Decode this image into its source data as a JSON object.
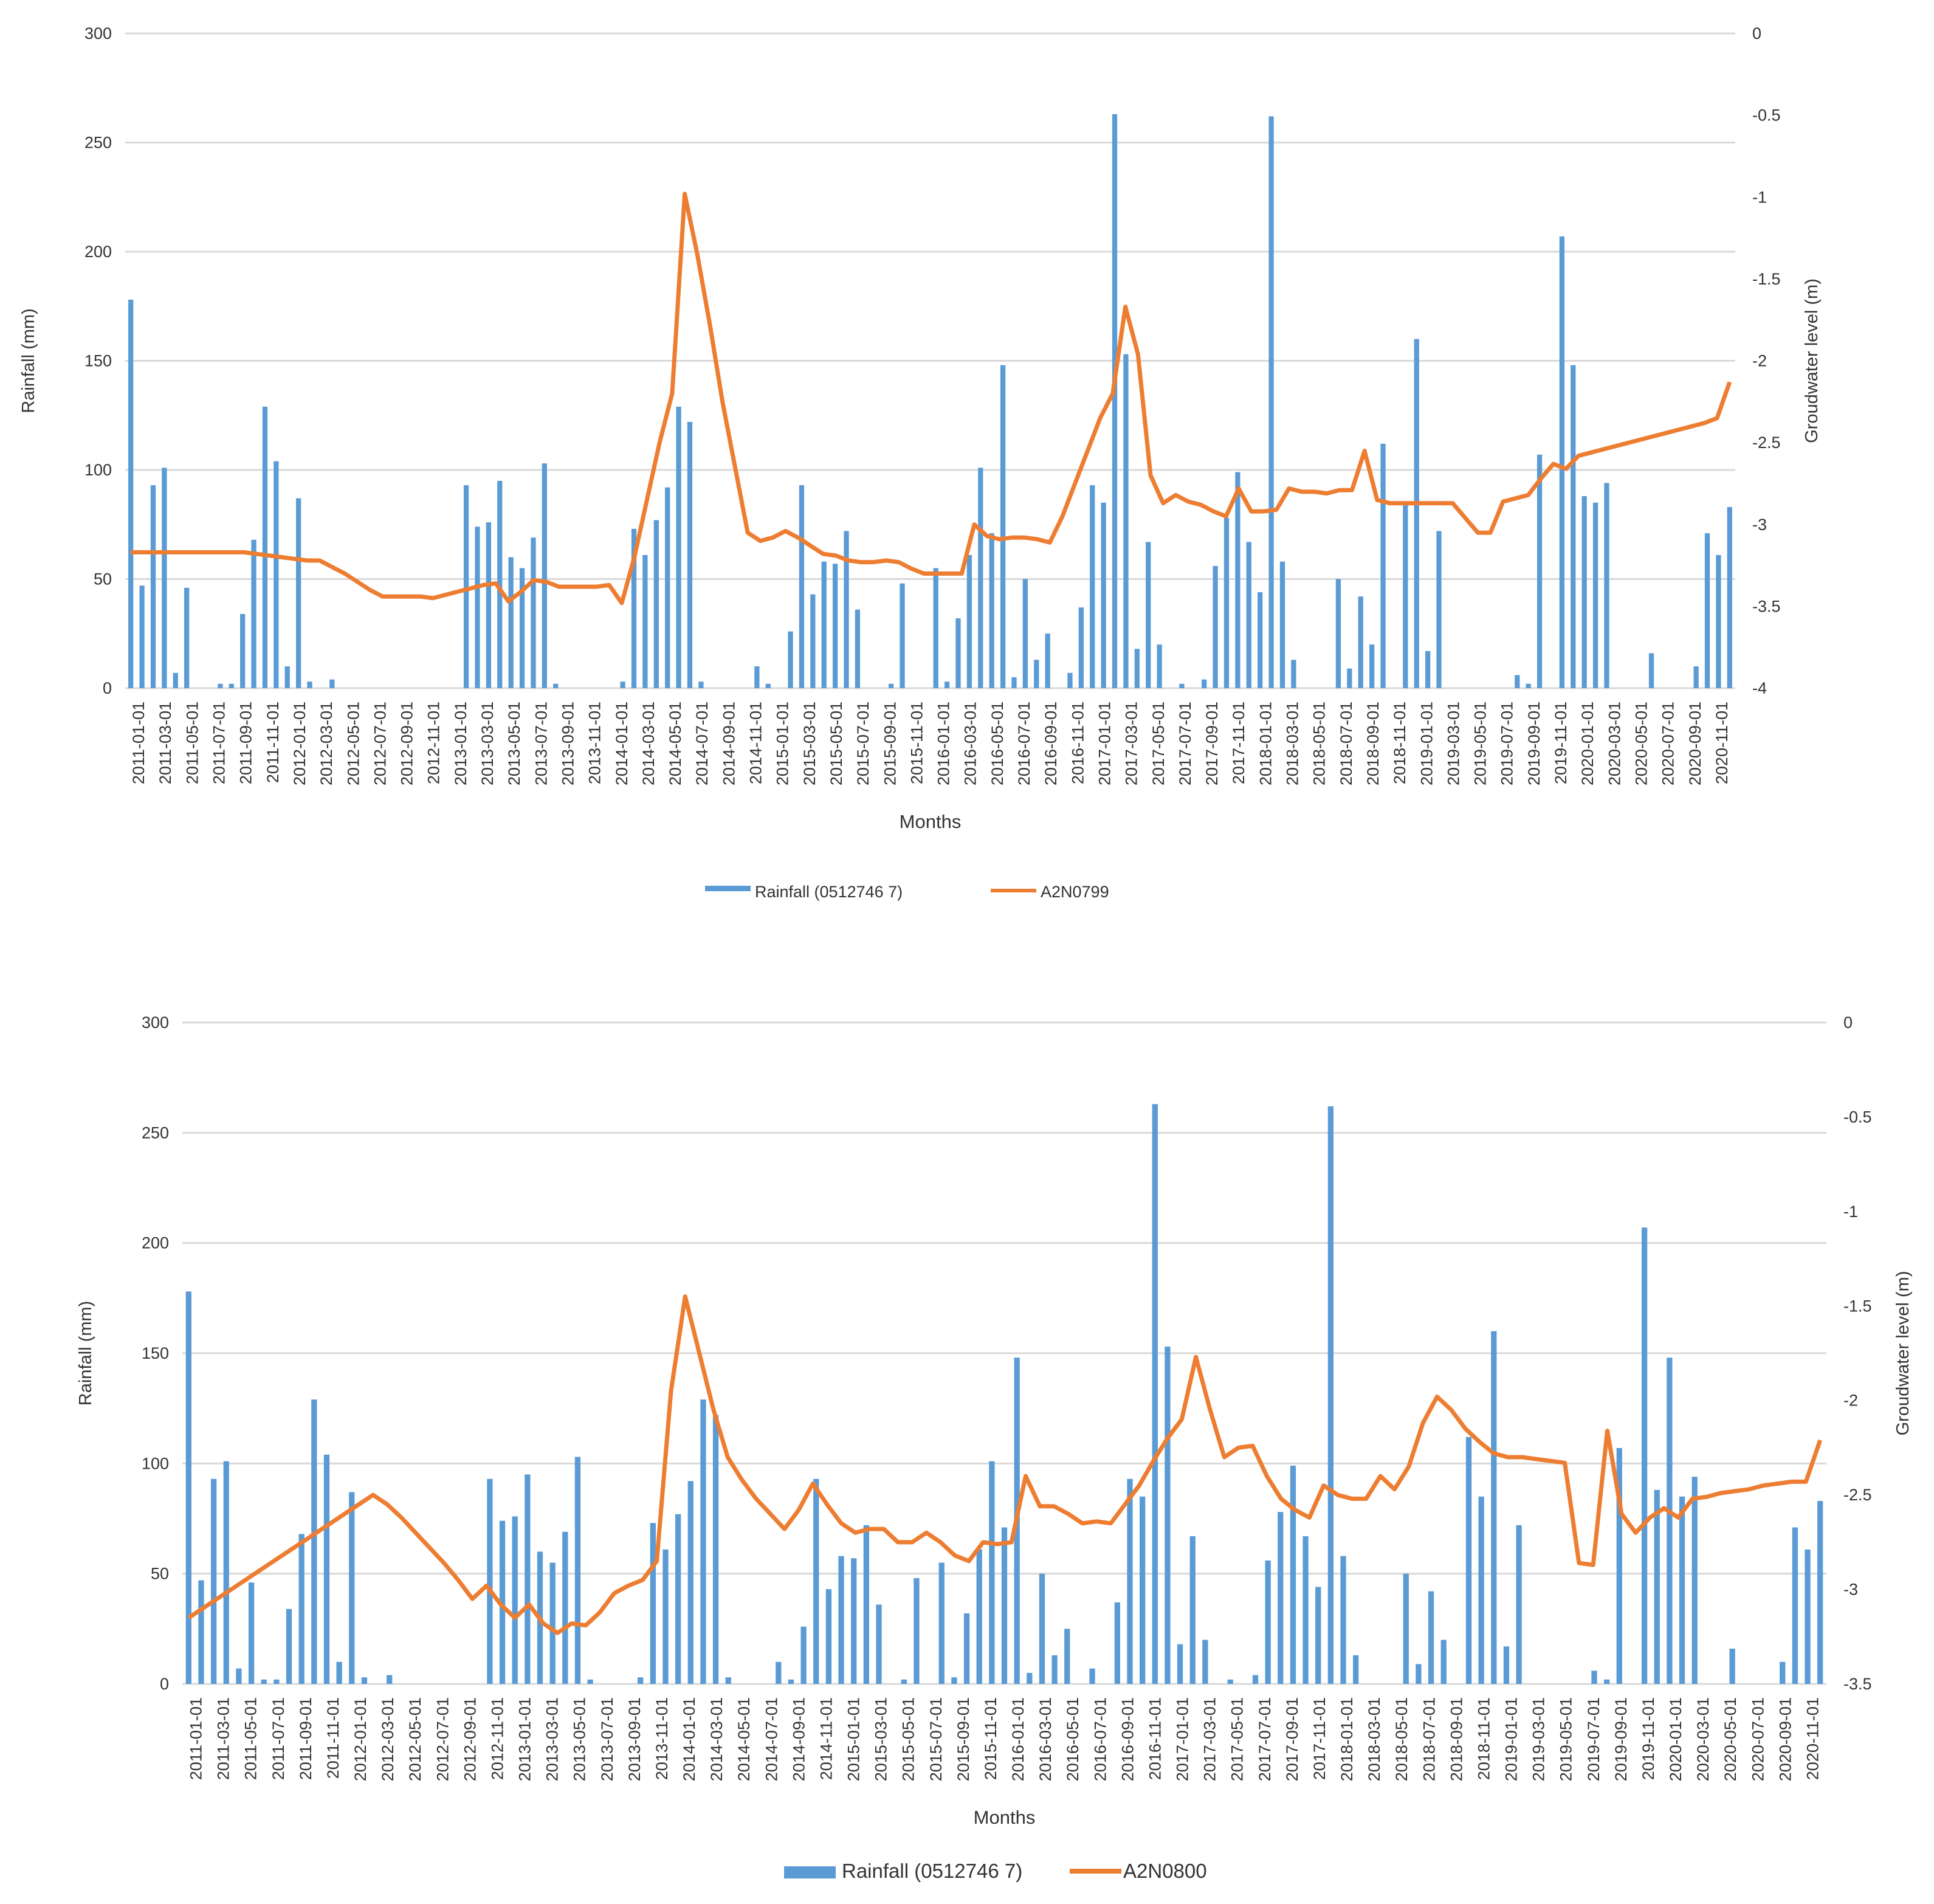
{
  "colors": {
    "rainfall": "#5b9bd5",
    "groundwater": "#ed7d31",
    "grid": "#d9d9d9",
    "text": "#333333"
  },
  "chart_data": [
    {
      "type": "bar+line",
      "xlabel": "Months",
      "ylabel_left": "Rainfall (mm)",
      "ylabel_right": "Groudwater level (m)",
      "ylim_left": [
        0,
        300
      ],
      "ylim_right": [
        -4,
        0
      ],
      "yticks_left": [
        "0",
        "50",
        "100",
        "150",
        "200",
        "250",
        "300"
      ],
      "yticks_right": [
        "-4",
        "-3.5",
        "-3",
        "-2.5",
        "-2",
        "-1.5",
        "-1",
        "-0.5",
        "0"
      ],
      "legend": [
        "Rainfall (0512746 7)",
        "A2N0799"
      ],
      "x_tick_labels": [
        "2011-01-01",
        "2011-03-01",
        "2011-05-01",
        "2011-07-01",
        "2011-09-01",
        "2011-11-01",
        "2012-01-01",
        "2012-03-01",
        "2012-05-01",
        "2012-07-01",
        "2012-09-01",
        "2012-11-01",
        "2013-01-01",
        "2013-03-01",
        "2013-05-01",
        "2013-07-01",
        "2013-09-01",
        "2013-11-01",
        "2014-01-01",
        "2014-03-01",
        "2014-05-01",
        "2014-07-01",
        "2014-09-01",
        "2014-11-01",
        "2015-01-01",
        "2015-03-01",
        "2015-05-01",
        "2015-07-01",
        "2015-09-01",
        "2015-11-01",
        "2016-01-01",
        "2016-03-01",
        "2016-05-01",
        "2016-07-01",
        "2016-09-01",
        "2016-11-01",
        "2017-01-01",
        "2017-03-01",
        "2017-05-01",
        "2017-07-01",
        "2017-09-01",
        "2017-11-01",
        "2018-01-01",
        "2018-03-01",
        "2018-05-01",
        "2018-07-01",
        "2018-09-01",
        "2018-11-01",
        "2019-01-01",
        "2019-03-01",
        "2019-05-01",
        "2019-07-01",
        "2019-09-01",
        "2019-11-01",
        "2020-01-01",
        "2020-03-01",
        "2020-05-01",
        "2020-07-01",
        "2020-09-01",
        "2020-11-01"
      ],
      "rainfall": [
        178,
        47,
        93,
        101,
        7,
        46,
        0,
        0,
        2,
        2,
        34,
        68,
        129,
        104,
        10,
        87,
        3,
        0,
        4,
        0,
        0,
        0,
        0,
        0,
        0,
        0,
        0,
        0,
        0,
        0,
        93,
        74,
        76,
        95,
        60,
        55,
        69,
        103,
        2,
        0,
        0,
        0,
        0,
        0,
        3,
        73,
        61,
        77,
        92,
        129,
        122,
        3,
        0,
        0,
        0,
        0,
        10,
        2,
        0,
        26,
        93,
        43,
        58,
        57,
        72,
        36,
        0,
        0,
        2,
        48,
        0,
        0,
        55,
        3,
        32,
        61,
        101,
        71,
        148,
        5,
        50,
        13,
        25,
        0,
        7,
        37,
        93,
        85,
        263,
        153,
        18,
        67,
        20,
        0,
        2,
        0,
        4,
        56,
        78,
        99,
        67,
        44,
        262,
        58,
        13,
        0,
        0,
        0,
        50,
        9,
        42,
        20,
        112,
        0,
        85,
        160,
        17,
        72,
        0,
        0,
        0,
        0,
        0,
        0,
        6,
        2,
        107,
        0,
        207,
        148,
        88,
        85,
        94,
        0,
        0,
        0,
        16,
        0,
        0,
        0,
        10,
        71,
        61,
        83
      ],
      "groundwater": [
        -3.17,
        -3.17,
        -3.17,
        -3.17,
        -3.17,
        -3.17,
        -3.17,
        -3.17,
        -3.17,
        -3.17,
        -3.18,
        -3.19,
        -3.2,
        -3.21,
        -3.22,
        -3.22,
        -3.26,
        -3.3,
        -3.35,
        -3.4,
        -3.44,
        -3.44,
        -3.44,
        -3.44,
        -3.45,
        -3.43,
        -3.41,
        -3.39,
        -3.37,
        -3.36,
        -3.47,
        -3.41,
        -3.34,
        -3.35,
        -3.38,
        -3.38,
        -3.38,
        -3.38,
        -3.37,
        -3.48,
        -3.2,
        -2.85,
        -2.5,
        -2.2,
        -0.98,
        -1.35,
        -1.78,
        -2.25,
        -2.65,
        -3.05,
        -3.1,
        -3.08,
        -3.04,
        -3.08,
        -3.13,
        -3.18,
        -3.19,
        -3.22,
        -3.23,
        -3.23,
        -3.22,
        -3.23,
        -3.27,
        -3.3,
        -3.3,
        -3.3,
        -3.3,
        -3.0,
        -3.07,
        -3.09,
        -3.08,
        -3.08,
        -3.09,
        -3.11,
        -2.95,
        -2.75,
        -2.55,
        -2.35,
        -2.2,
        -1.67,
        -1.96,
        -2.7,
        -2.87,
        -2.82,
        -2.86,
        -2.88,
        -2.92,
        -2.95,
        -2.78,
        -2.92,
        -2.92,
        -2.91,
        -2.78,
        -2.8,
        -2.8,
        -2.81,
        -2.79,
        -2.79,
        -2.55,
        -2.85,
        -2.87,
        -2.87,
        -2.87,
        -2.87,
        -2.87,
        -2.87,
        -2.96,
        -3.05,
        -3.05,
        -2.86,
        -2.84,
        -2.82,
        -2.72,
        -2.63,
        -2.66,
        -2.58,
        -2.56,
        -2.54,
        -2.52,
        -2.5,
        -2.48,
        -2.46,
        -2.44,
        -2.42,
        -2.4,
        -2.38,
        -2.35,
        -2.13
      ]
    },
    {
      "type": "bar+line",
      "xlabel": "Months",
      "ylabel_left": "Rainfall (mm)",
      "ylabel_right": "Groudwater level (m)",
      "ylim_left": [
        0,
        300
      ],
      "ylim_right": [
        -3.5,
        0
      ],
      "yticks_left": [
        "0",
        "50",
        "100",
        "150",
        "200",
        "250",
        "300"
      ],
      "yticks_right": [
        "-3.5",
        "-3",
        "-2.5",
        "-2",
        "-1.5",
        "-1",
        "-0.5",
        "0"
      ],
      "legend": [
        "Rainfall (0512746 7)",
        "A2N0800"
      ],
      "x_tick_labels": [
        "2011-01-01",
        "2011-03-01",
        "2011-05-01",
        "2011-07-01",
        "2011-09-01",
        "2011-11-01",
        "2012-01-01",
        "2012-03-01",
        "2012-05-01",
        "2012-07-01",
        "2012-09-01",
        "2012-11-01",
        "2013-01-01",
        "2013-03-01",
        "2013-05-01",
        "2013-07-01",
        "2013-09-01",
        "2013-11-01",
        "2014-01-01",
        "2014-03-01",
        "2014-05-01",
        "2014-07-01",
        "2014-09-01",
        "2014-11-01",
        "2015-01-01",
        "2015-03-01",
        "2015-05-01",
        "2015-07-01",
        "2015-09-01",
        "2015-11-01",
        "2016-01-01",
        "2016-03-01",
        "2016-05-01",
        "2016-07-01",
        "2016-09-01",
        "2016-11-01",
        "2017-01-01",
        "2017-03-01",
        "2017-05-01",
        "2017-07-01",
        "2017-09-01",
        "2017-11-01",
        "2018-01-01",
        "2018-03-01",
        "2018-05-01",
        "2018-07-01",
        "2018-09-01",
        "2018-11-01",
        "2019-01-01",
        "2019-03-01",
        "2019-05-01",
        "2019-07-01",
        "2019-09-01",
        "2019-11-01",
        "2020-01-01",
        "2020-03-01",
        "2020-05-01",
        "2020-07-01",
        "2020-09-01",
        "2020-11-01"
      ],
      "rainfall": [
        178,
        47,
        93,
        101,
        7,
        46,
        2,
        2,
        34,
        68,
        129,
        104,
        10,
        87,
        3,
        0,
        4,
        0,
        0,
        0,
        0,
        0,
        0,
        0,
        93,
        74,
        76,
        95,
        60,
        55,
        69,
        103,
        2,
        0,
        0,
        0,
        3,
        73,
        61,
        77,
        92,
        129,
        122,
        3,
        0,
        0,
        0,
        10,
        2,
        26,
        93,
        43,
        58,
        57,
        72,
        36,
        0,
        2,
        48,
        0,
        55,
        3,
        32,
        61,
        101,
        71,
        148,
        5,
        50,
        13,
        25,
        0,
        7,
        0,
        37,
        93,
        85,
        263,
        153,
        18,
        67,
        20,
        0,
        2,
        0,
        4,
        56,
        78,
        99,
        67,
        44,
        262,
        58,
        13,
        0,
        0,
        0,
        50,
        9,
        42,
        20,
        0,
        112,
        85,
        160,
        17,
        72,
        0,
        0,
        0,
        0,
        0,
        6,
        2,
        107,
        0,
        207,
        88,
        148,
        85,
        94,
        0,
        0,
        16,
        0,
        0,
        0,
        10,
        71,
        61,
        83
      ],
      "groundwater": [
        -3.15,
        -3.1,
        -3.05,
        -3.0,
        -2.95,
        -2.9,
        -2.85,
        -2.8,
        -2.75,
        -2.7,
        -2.65,
        -2.6,
        -2.55,
        -2.5,
        -2.55,
        -2.62,
        -2.7,
        -2.78,
        -2.86,
        -2.95,
        -3.05,
        -2.98,
        -3.08,
        -3.15,
        -3.08,
        -3.18,
        -3.23,
        -3.18,
        -3.19,
        -3.12,
        -3.02,
        -2.98,
        -2.95,
        -2.85,
        -1.95,
        -1.45,
        -1.75,
        -2.05,
        -2.3,
        -2.42,
        -2.52,
        -2.6,
        -2.68,
        -2.58,
        -2.44,
        -2.55,
        -2.65,
        -2.7,
        -2.68,
        -2.68,
        -2.75,
        -2.75,
        -2.7,
        -2.75,
        -2.82,
        -2.85,
        -2.75,
        -2.76,
        -2.75,
        -2.4,
        -2.56,
        -2.56,
        -2.6,
        -2.65,
        -2.64,
        -2.65,
        -2.55,
        -2.45,
        -2.32,
        -2.2,
        -2.1,
        -1.77,
        -2.05,
        -2.3,
        -2.25,
        -2.24,
        -2.4,
        -2.52,
        -2.58,
        -2.62,
        -2.45,
        -2.5,
        -2.52,
        -2.52,
        -2.4,
        -2.47,
        -2.35,
        -2.12,
        -1.98,
        -2.05,
        -2.15,
        -2.22,
        -2.28,
        -2.3,
        -2.3,
        -2.31,
        -2.32,
        -2.33,
        -2.86,
        -2.87,
        -2.16,
        -2.6,
        -2.7,
        -2.62,
        -2.57,
        -2.62,
        -2.52,
        -2.51,
        -2.49,
        -2.48,
        -2.47,
        -2.45,
        -2.44,
        -2.43,
        -2.43,
        -2.21
      ]
    }
  ]
}
